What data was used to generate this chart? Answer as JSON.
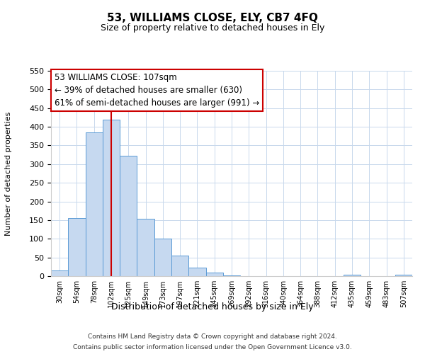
{
  "title": "53, WILLIAMS CLOSE, ELY, CB7 4FQ",
  "subtitle": "Size of property relative to detached houses in Ely",
  "xlabel": "Distribution of detached houses by size in Ely",
  "ylabel": "Number of detached properties",
  "bin_labels": [
    "30sqm",
    "54sqm",
    "78sqm",
    "102sqm",
    "125sqm",
    "149sqm",
    "173sqm",
    "197sqm",
    "221sqm",
    "245sqm",
    "269sqm",
    "292sqm",
    "316sqm",
    "340sqm",
    "364sqm",
    "388sqm",
    "412sqm",
    "435sqm",
    "459sqm",
    "483sqm",
    "507sqm"
  ],
  "bar_heights": [
    15,
    155,
    385,
    420,
    322,
    153,
    100,
    55,
    22,
    10,
    2,
    0,
    0,
    0,
    0,
    0,
    0,
    3,
    0,
    0,
    3
  ],
  "bar_color": "#c6d9f0",
  "bar_edge_color": "#5b9bd5",
  "vline_x": 3,
  "vline_color": "#cc0000",
  "ylim": [
    0,
    550
  ],
  "yticks": [
    0,
    50,
    100,
    150,
    200,
    250,
    300,
    350,
    400,
    450,
    500,
    550
  ],
  "annotation_line1": "53 WILLIAMS CLOSE: 107sqm",
  "annotation_line2": "← 39% of detached houses are smaller (630)",
  "annotation_line3": "61% of semi-detached houses are larger (991) →",
  "annotation_box_color": "#ffffff",
  "annotation_box_edge": "#cc0000",
  "footer_line1": "Contains HM Land Registry data © Crown copyright and database right 2024.",
  "footer_line2": "Contains public sector information licensed under the Open Government Licence v3.0.",
  "background_color": "#ffffff",
  "grid_color": "#c8d8ec"
}
